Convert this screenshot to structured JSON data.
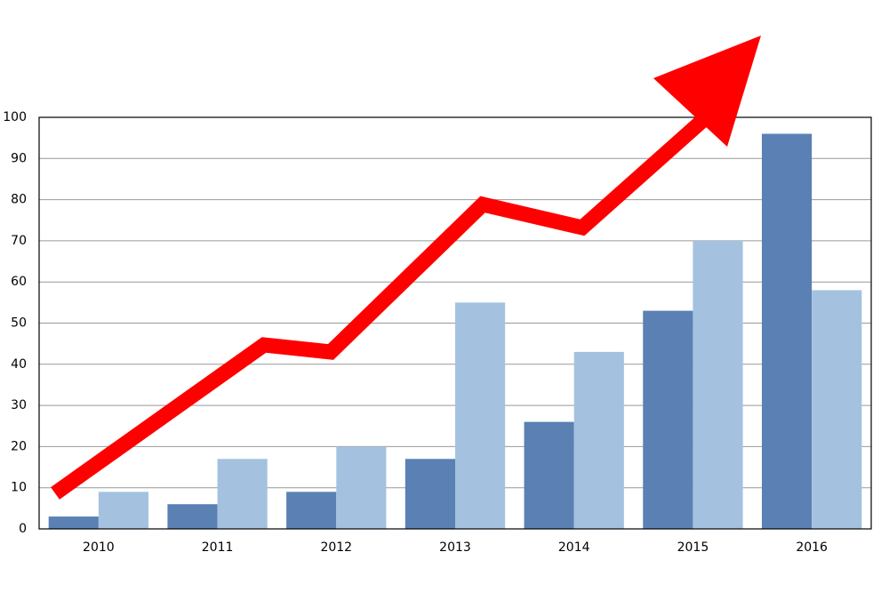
{
  "chart_data": {
    "type": "bar",
    "categories": [
      "2010",
      "2011",
      "2012",
      "2013",
      "2014",
      "2015",
      "2016"
    ],
    "series": [
      {
        "color": "#5a80b4",
        "values": [
          3,
          6,
          9,
          17,
          26,
          53,
          96
        ]
      },
      {
        "color": "#a4c2df",
        "values": [
          9,
          17,
          20,
          55,
          43,
          70,
          58
        ]
      }
    ],
    "ylim": [
      0,
      100
    ],
    "yticks": [
      0,
      10,
      20,
      30,
      40,
      50,
      60,
      70,
      80,
      90,
      100
    ],
    "grid": true
  }
}
